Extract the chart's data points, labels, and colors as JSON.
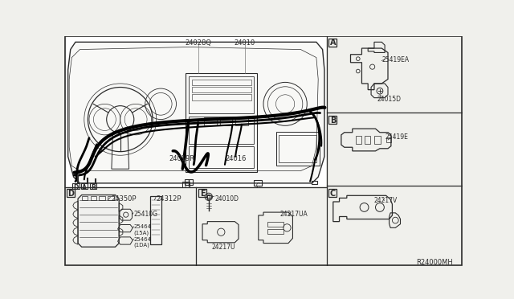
{
  "bg_color": "#f0f0ec",
  "line_color": "#2a2a2a",
  "text_color": "#2a2a2a",
  "white": "#ffffff",
  "part_labels": {
    "main_harness": "24010",
    "sub_harness": "24028Q",
    "harness_a": "24019R",
    "harness_b": "24016",
    "fuse_block": "24350P",
    "fuse_cover": "24312P",
    "relay_a": "25410G",
    "fuse_15a": "25464\n(15A)",
    "fuse_10a": "25464\n(1DA)",
    "connector_ea": "25419EA",
    "connector_d": "24015D",
    "connector_e": "25419E",
    "bracket_v": "24217V",
    "bolt": "24010D",
    "bracket_u": "24217U",
    "bracket_ua": "24217UA",
    "ref": "R24000MH"
  }
}
